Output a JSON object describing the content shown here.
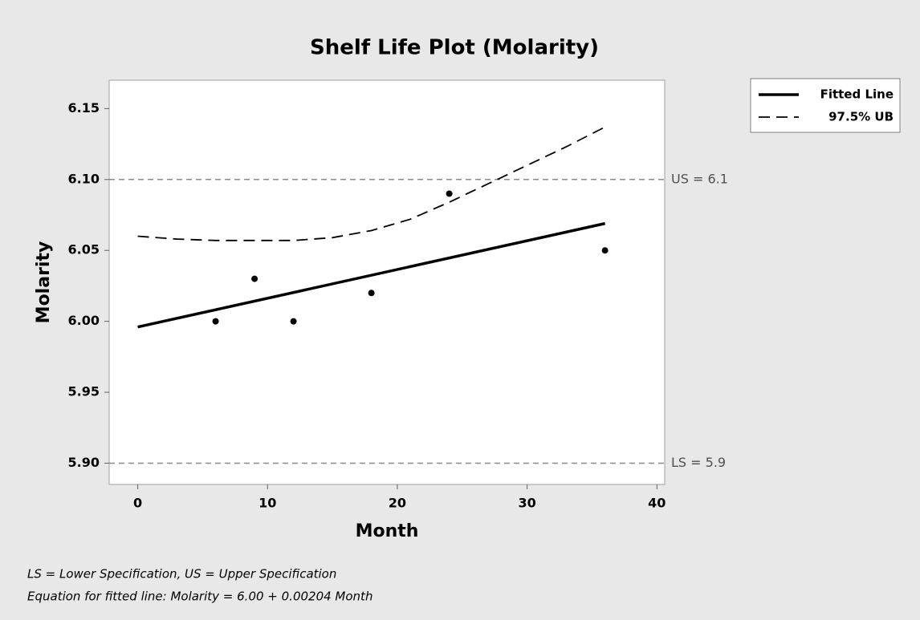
{
  "chart_data": {
    "type": "line",
    "title": "Shelf Life Plot (Molarity)",
    "x_label": "Month",
    "y_label": "Molarity",
    "xlim": [
      -2.2,
      40.6
    ],
    "ylim": [
      5.885,
      6.17
    ],
    "xticks": [
      0,
      10,
      20,
      30,
      40
    ],
    "yticks": [
      {
        "value": 5.9,
        "label": "5.90"
      },
      5.95,
      {
        "value": 6.0,
        "label": "6.00"
      },
      6.05,
      {
        "value": 6.1,
        "label": "6.10"
      },
      6.15
    ],
    "series": [
      {
        "name": "Fitted Line",
        "color": "#000000",
        "dash": "solid",
        "x": [
          0,
          36
        ],
        "values": [
          5.996,
          6.069
        ]
      },
      {
        "name": "97.5% UB",
        "color": "#000000",
        "dash": "dashed",
        "x": [
          0,
          3,
          6,
          9,
          12,
          15,
          18,
          21,
          24,
          27,
          30,
          33,
          36
        ],
        "values": [
          6.06,
          6.058,
          6.057,
          6.057,
          6.057,
          6.059,
          6.064,
          6.072,
          6.084,
          6.097,
          6.11,
          6.123,
          6.137
        ]
      }
    ],
    "points": {
      "color": "#000000",
      "x": [
        6,
        9,
        12,
        18,
        24,
        36
      ],
      "values": [
        6.0,
        6.03,
        6.0,
        6.02,
        6.09,
        6.05
      ]
    },
    "reference_lines": [
      {
        "value": 6.1,
        "label": "US = 6.1"
      },
      {
        "value": 5.9,
        "label": "LS = 5.9"
      }
    ],
    "legend": "right",
    "footnotes": [
      "LS = Lower Specification, US = Upper Specification",
      "Equation for fitted line: Molarity = 6.00 + 0.00204 Month"
    ]
  }
}
